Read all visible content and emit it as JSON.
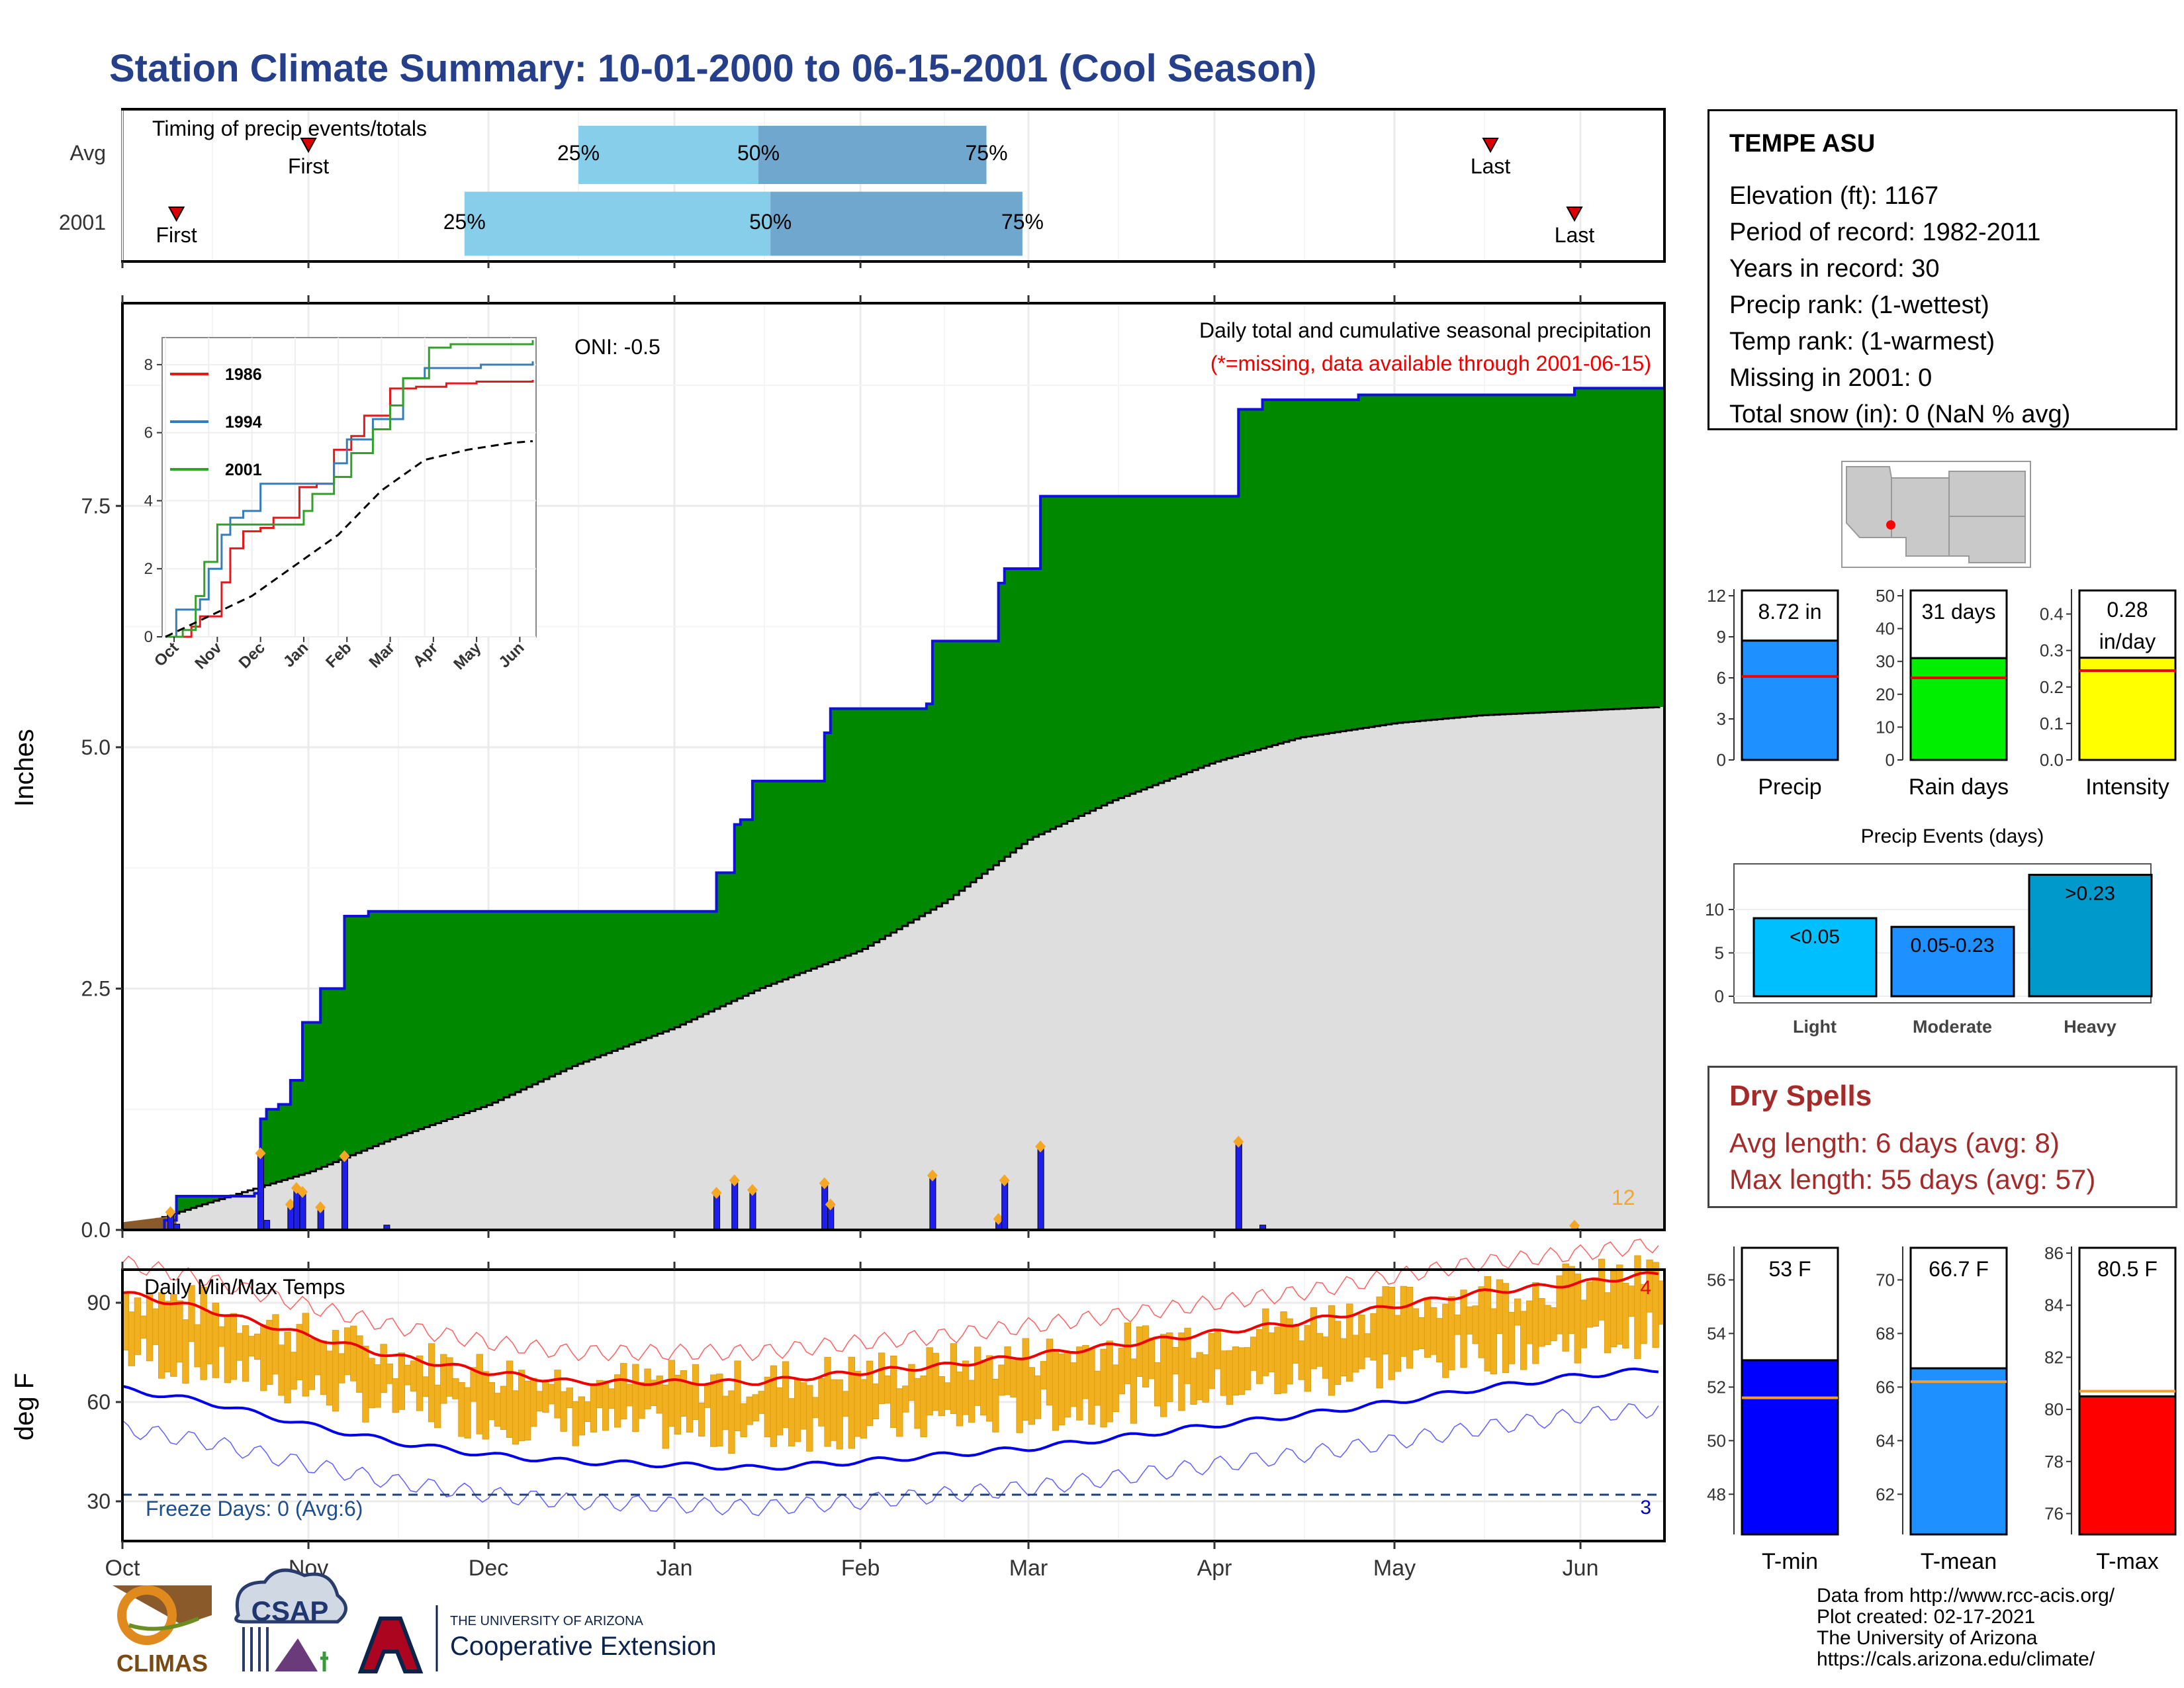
{
  "title": "Station Climate Summary: 10-01-2000 to 06-15-2001 (Cool Season)",
  "colors": {
    "title": "#253f8a",
    "precip_fill": "#008800",
    "normal_fill": "#dedede",
    "bar_blue": "#1e1eee",
    "dot_orange": "#f5a623",
    "temp_bar": "#f0b020",
    "tmax_line": "#ee0000",
    "tmin_line": "#0000ee",
    "dry_text": "#a52a2a"
  },
  "timing": {
    "label": "Timing of precip events/totals",
    "rows": [
      {
        "label": "Avg",
        "first": "First",
        "last": "Last",
        "p25": "25%",
        "p50": "50%",
        "p75": "75%"
      },
      {
        "label": "2001",
        "first": "First",
        "last": "Last",
        "p25": "25%",
        "p50": "50%",
        "p75": "75%"
      }
    ]
  },
  "station": {
    "name": "TEMPE ASU",
    "lines": [
      "Elevation (ft): 1167",
      "Period of record: 1982-2011",
      "Years in record: 30",
      "Precip rank:  (1-wettest)",
      "Temp rank:  (1-warmest)",
      "Missing in 2001: 0",
      "Total snow (in): 0 (NaN % avg)"
    ]
  },
  "main_chart": {
    "ylabel": "Inches",
    "legend_title": "Daily total and cumulative seasonal precipitation",
    "legend_note": "(*=missing, data available through 2001-06-15)",
    "oni": "ONI: -0.5",
    "count_label": "12",
    "yticks": [
      "0.0",
      "2.5",
      "5.0",
      "7.5"
    ]
  },
  "inset": {
    "series": [
      "1986",
      "1994",
      "2001"
    ],
    "yticks": [
      "0",
      "2",
      "4",
      "6",
      "8"
    ],
    "months": [
      "Oct",
      "Nov",
      "Dec",
      "Jan",
      "Feb",
      "Mar",
      "Apr",
      "May",
      "Jun"
    ]
  },
  "temp_chart": {
    "label": "Daily Min/Max Temps",
    "ylabel": "deg F",
    "freeze": "Freeze Days: 0 (Avg:6)",
    "max_count": "4",
    "min_count": "3",
    "yticks": [
      "30",
      "60",
      "90"
    ]
  },
  "months": [
    "Oct",
    "Nov",
    "Dec",
    "Jan",
    "Feb",
    "Mar",
    "Apr",
    "May",
    "Jun"
  ],
  "mini_bars": [
    {
      "label": "Precip",
      "value_label": "8.72 in",
      "color": "#1e90ff",
      "yticks": [
        "0",
        "3",
        "6",
        "9",
        "12"
      ]
    },
    {
      "label": "Rain days",
      "value_label": "31 days",
      "color": "#00ee00",
      "yticks": [
        "0",
        "10",
        "20",
        "30",
        "40",
        "50"
      ]
    },
    {
      "label": "Intensity",
      "value_label": "0.28 in/day",
      "color": "#ffff00",
      "yticks": [
        "0.0",
        "0.1",
        "0.2",
        "0.3",
        "0.4"
      ]
    }
  ],
  "events": {
    "title": "Precip Events (days)",
    "cats": [
      "Light",
      "Moderate",
      "Heavy"
    ],
    "labels": [
      "<0.05",
      "0.05-0.23",
      ">0.23"
    ],
    "yticks": [
      "0",
      "5",
      "10"
    ]
  },
  "dry": {
    "title": "Dry Spells",
    "avg": "Avg length: 6 days (avg: 8)",
    "max": "Max length: 55 days (avg: 57)"
  },
  "temp_bars": [
    {
      "label": "T-min",
      "value_label": "53 F",
      "color": "#0000ff",
      "yticks": [
        "48",
        "50",
        "52",
        "54",
        "56"
      ]
    },
    {
      "label": "T-mean",
      "value_label": "66.7 F",
      "color": "#1e90ff",
      "yticks": [
        "62",
        "64",
        "66",
        "68",
        "70"
      ]
    },
    {
      "label": "T-max",
      "value_label": "80.5 F",
      "color": "#ff0000",
      "yticks": [
        "76",
        "78",
        "80",
        "82",
        "84",
        "86"
      ]
    }
  ],
  "credits": [
    "Data from http://www.rcc-acis.org/",
    "Plot created: 02-17-2021",
    "The University of Arizona",
    "https://cals.arizona.edu/climate/"
  ],
  "logos": {
    "climas": "CLIMAS",
    "csap": "CSAP",
    "ua_small": "THE UNIVERSITY OF ARIZONA",
    "ua_big": "Cooperative Extension"
  },
  "chart_data": [
    {
      "type": "bar",
      "title": "Timing of precip events/totals",
      "categories": [
        "Avg",
        "2001"
      ],
      "series": [
        {
          "name": "First",
          "values": [
            "2000-11-01",
            "2000-10-10"
          ]
        },
        {
          "name": "25%",
          "values": [
            "2000-12-16",
            "2000-11-27"
          ]
        },
        {
          "name": "50%",
          "values": [
            "2001-01-15",
            "2001-01-17"
          ]
        },
        {
          "name": "75%",
          "values": [
            "2001-02-22",
            "2001-02-28"
          ]
        },
        {
          "name": "Last",
          "values": [
            "2001-05-17",
            "2001-05-31"
          ]
        }
      ]
    },
    {
      "type": "area",
      "title": "Daily total and cumulative seasonal precipitation",
      "ylabel": "Inches",
      "ylim": [
        0,
        9.6
      ],
      "series": [
        {
          "name": "cumulative 2001",
          "points": [
            [
              "2000-10-01",
              0
            ],
            [
              "2000-10-08",
              0.1
            ],
            [
              "2000-10-10",
              0.35
            ],
            [
              "2000-10-23",
              0.38
            ],
            [
              "2000-10-24",
              1.15
            ],
            [
              "2000-10-25",
              1.25
            ],
            [
              "2000-10-27",
              1.3
            ],
            [
              "2000-10-29",
              1.55
            ],
            [
              "2000-10-31",
              2.15
            ],
            [
              "2000-11-03",
              2.5
            ],
            [
              "2000-11-06",
              2.5
            ],
            [
              "2000-11-07",
              3.25
            ],
            [
              "2000-11-11",
              3.3
            ],
            [
              "2001-01-07",
              3.3
            ],
            [
              "2001-01-08",
              3.7
            ],
            [
              "2001-01-11",
              4.2
            ],
            [
              "2001-01-12",
              4.25
            ],
            [
              "2001-01-14",
              4.65
            ],
            [
              "2001-01-25",
              4.65
            ],
            [
              "2001-01-26",
              5.15
            ],
            [
              "2001-01-27",
              5.4
            ],
            [
              "2001-02-12",
              5.45
            ],
            [
              "2001-02-13",
              6.1
            ],
            [
              "2001-02-23",
              6.1
            ],
            [
              "2001-02-24",
              6.7
            ],
            [
              "2001-02-25",
              6.85
            ],
            [
              "2001-03-03",
              7.6
            ],
            [
              "2001-04-04",
              7.6
            ],
            [
              "2001-04-05",
              8.5
            ],
            [
              "2001-04-09",
              8.6
            ],
            [
              "2001-04-25",
              8.65
            ],
            [
              "2001-05-31",
              8.72
            ],
            [
              "2001-06-15",
              8.72
            ]
          ]
        },
        {
          "name": "average cumulative",
          "points": [
            [
              "2000-10-01",
              0
            ],
            [
              "2000-10-15",
              0.28
            ],
            [
              "2000-11-01",
              0.6
            ],
            [
              "2000-11-15",
              0.95
            ],
            [
              "2000-12-01",
              1.3
            ],
            [
              "2000-12-15",
              1.7
            ],
            [
              "2001-01-01",
              2.1
            ],
            [
              "2001-01-15",
              2.5
            ],
            [
              "2001-02-01",
              2.9
            ],
            [
              "2001-02-15",
              3.4
            ],
            [
              "2001-03-01",
              4.05
            ],
            [
              "2001-03-15",
              4.45
            ],
            [
              "2001-04-01",
              4.85
            ],
            [
              "2001-04-15",
              5.1
            ],
            [
              "2001-05-01",
              5.25
            ],
            [
              "2001-05-15",
              5.33
            ],
            [
              "2001-06-01",
              5.38
            ],
            [
              "2001-06-15",
              5.42
            ]
          ]
        }
      ],
      "daily_bars": [
        [
          "2000-10-09",
          0.17
        ],
        [
          "2000-10-10",
          0.06
        ],
        [
          "2000-10-24",
          0.78
        ],
        [
          "2000-10-25",
          0.1
        ],
        [
          "2000-10-29",
          0.25
        ],
        [
          "2000-10-30",
          0.42
        ],
        [
          "2000-10-31",
          0.38
        ],
        [
          "2000-11-03",
          0.22
        ],
        [
          "2000-11-07",
          0.75
        ],
        [
          "2000-11-14",
          0.05
        ],
        [
          "2001-01-08",
          0.37
        ],
        [
          "2001-01-11",
          0.5
        ],
        [
          "2001-01-14",
          0.4
        ],
        [
          "2001-01-26",
          0.47
        ],
        [
          "2001-01-27",
          0.25
        ],
        [
          "2001-02-13",
          0.55
        ],
        [
          "2001-02-24",
          0.1
        ],
        [
          "2001-02-25",
          0.5
        ],
        [
          "2001-03-03",
          0.85
        ],
        [
          "2001-04-05",
          0.9
        ],
        [
          "2001-04-09",
          0.05
        ],
        [
          "2001-05-31",
          0.03
        ]
      ]
    },
    {
      "type": "line",
      "title": "inset cumulative precipitation",
      "ylim": [
        0,
        8.6
      ],
      "series": [
        {
          "name": "1986",
          "points": [
            [
              0,
              0
            ],
            [
              0.6,
              0.3
            ],
            [
              0.8,
              0.6
            ],
            [
              1.1,
              0.6
            ],
            [
              1.3,
              1.6
            ],
            [
              1.5,
              2.6
            ],
            [
              1.8,
              3.1
            ],
            [
              2.2,
              3.2
            ],
            [
              2.5,
              3.5
            ],
            [
              3.1,
              4.4
            ],
            [
              3.5,
              4.5
            ],
            [
              3.9,
              5.5
            ],
            [
              4.3,
              5.9
            ],
            [
              4.6,
              6.5
            ],
            [
              5.2,
              7.3
            ],
            [
              5.8,
              7.35
            ],
            [
              6.5,
              7.45
            ],
            [
              7.2,
              7.5
            ],
            [
              8.5,
              7.55
            ]
          ]
        },
        {
          "name": "1994",
          "points": [
            [
              0,
              0
            ],
            [
              0.25,
              0.8
            ],
            [
              0.8,
              1.1
            ],
            [
              1.0,
              2.0
            ],
            [
              1.3,
              3.0
            ],
            [
              1.5,
              3.5
            ],
            [
              1.8,
              3.7
            ],
            [
              2.2,
              4.5
            ],
            [
              3.0,
              4.5
            ],
            [
              3.9,
              5.1
            ],
            [
              4.2,
              5.8
            ],
            [
              4.8,
              6.4
            ],
            [
              5.5,
              7.6
            ],
            [
              6.0,
              7.9
            ],
            [
              7.3,
              8.0
            ],
            [
              8.5,
              8.1
            ]
          ]
        },
        {
          "name": "2001",
          "points": [
            [
              0,
              0
            ],
            [
              0.4,
              0.2
            ],
            [
              0.7,
              1.2
            ],
            [
              0.9,
              2.2
            ],
            [
              1.2,
              3.3
            ],
            [
              1.8,
              3.3
            ],
            [
              3.0,
              3.3
            ],
            [
              3.2,
              3.7
            ],
            [
              3.4,
              4.2
            ],
            [
              3.9,
              4.7
            ],
            [
              4.3,
              5.4
            ],
            [
              4.8,
              6.1
            ],
            [
              5.2,
              6.8
            ],
            [
              5.5,
              7.6
            ],
            [
              6.1,
              8.5
            ],
            [
              6.6,
              8.6
            ],
            [
              8.5,
              8.72
            ]
          ]
        },
        {
          "name": "average",
          "points": [
            [
              0,
              0
            ],
            [
              1,
              0.6
            ],
            [
              2,
              1.2
            ],
            [
              3,
              2.1
            ],
            [
              4,
              3.0
            ],
            [
              5,
              4.3
            ],
            [
              6,
              5.2
            ],
            [
              7,
              5.5
            ],
            [
              8,
              5.7
            ],
            [
              8.5,
              5.75
            ]
          ]
        }
      ]
    },
    {
      "type": "line",
      "title": "Daily Min/Max Temps",
      "ylabel": "deg F",
      "ylim": [
        18,
        100
      ],
      "series": [
        {
          "name": "normal max",
          "points": [
            [
              "2000-10-01",
              93
            ],
            [
              "2000-10-15",
              88
            ],
            [
              "2000-11-01",
              80
            ],
            [
              "2000-11-15",
              74
            ],
            [
              "2000-12-01",
              69
            ],
            [
              "2000-12-15",
              66
            ],
            [
              "2001-01-01",
              66
            ],
            [
              "2001-01-15",
              66
            ],
            [
              "2001-02-01",
              69
            ],
            [
              "2001-02-15",
              71
            ],
            [
              "2001-03-01",
              74
            ],
            [
              "2001-03-15",
              77
            ],
            [
              "2001-04-01",
              81
            ],
            [
              "2001-04-15",
              84
            ],
            [
              "2001-05-01",
              89
            ],
            [
              "2001-05-15",
              93
            ],
            [
              "2001-06-01",
              96
            ],
            [
              "2001-06-15",
              99
            ]
          ]
        },
        {
          "name": "normal min",
          "points": [
            [
              "2000-10-01",
              64
            ],
            [
              "2000-10-15",
              60
            ],
            [
              "2000-11-01",
              53
            ],
            [
              "2000-11-15",
              48
            ],
            [
              "2000-12-01",
              44
            ],
            [
              "2000-12-15",
              42
            ],
            [
              "2001-01-01",
              41
            ],
            [
              "2001-01-15",
              40
            ],
            [
              "2001-02-01",
              42
            ],
            [
              "2001-02-15",
              44
            ],
            [
              "2001-03-01",
              46
            ],
            [
              "2001-03-15",
              49
            ],
            [
              "2001-04-01",
              53
            ],
            [
              "2001-04-15",
              56
            ],
            [
              "2001-05-01",
              60
            ],
            [
              "2001-05-15",
              64
            ],
            [
              "2001-06-01",
              68
            ],
            [
              "2001-06-15",
              70
            ]
          ]
        },
        {
          "name": "freeze line",
          "points": [
            [
              "2000-10-01",
              32
            ],
            [
              "2001-06-15",
              32
            ]
          ]
        }
      ]
    },
    {
      "type": "bar",
      "categories": [
        "Precip"
      ],
      "values": [
        8.72
      ],
      "normal": 6.1,
      "ylim": [
        0,
        12
      ]
    },
    {
      "type": "bar",
      "categories": [
        "Rain days"
      ],
      "values": [
        31
      ],
      "normal": 25,
      "ylim": [
        0,
        50
      ]
    },
    {
      "type": "bar",
      "categories": [
        "Intensity"
      ],
      "values": [
        0.28
      ],
      "normal": 0.245,
      "ylim": [
        0,
        0.45
      ]
    },
    {
      "type": "bar",
      "title": "Precip Events (days)",
      "categories": [
        "Light",
        "Moderate",
        "Heavy"
      ],
      "values": [
        9,
        8,
        14
      ],
      "ylim": [
        0,
        14.5
      ]
    },
    {
      "type": "bar",
      "categories": [
        "T-min"
      ],
      "values": [
        53
      ],
      "normal": 51.6,
      "ylim": [
        46.5,
        57
      ]
    },
    {
      "type": "bar",
      "categories": [
        "T-mean"
      ],
      "values": [
        66.7
      ],
      "normal": 66.2,
      "ylim": [
        60.5,
        71
      ]
    },
    {
      "type": "bar",
      "categories": [
        "T-max"
      ],
      "values": [
        80.5
      ],
      "normal": 80.7,
      "ylim": [
        75.2,
        86
      ]
    }
  ]
}
